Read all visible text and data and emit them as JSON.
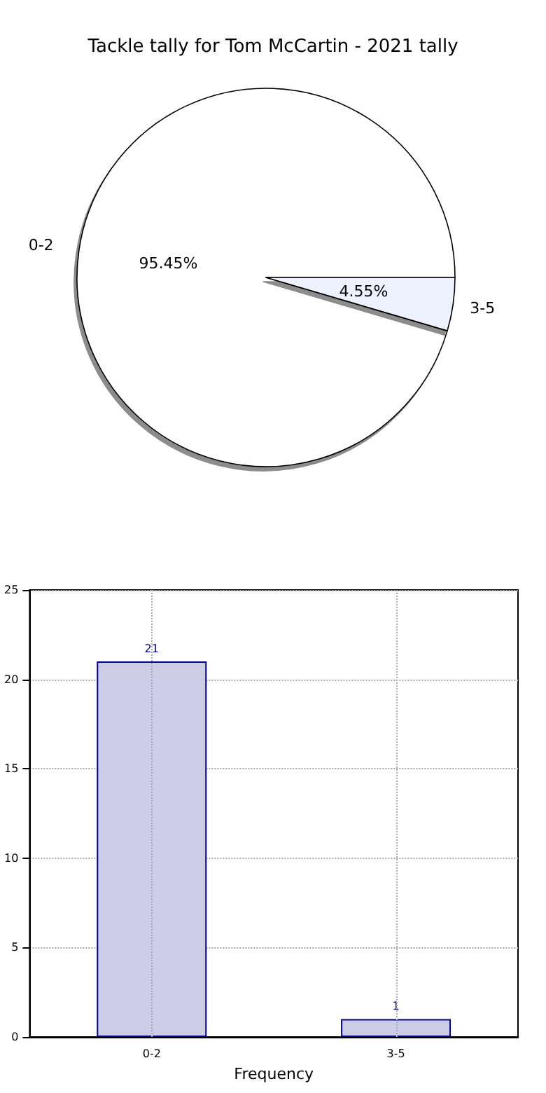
{
  "chart_data": [
    {
      "type": "pie",
      "title": "Tackle tally for Tom McCartin - 2021 tally",
      "categories": [
        "0-2",
        "3-5"
      ],
      "values": [
        95.45,
        4.55
      ],
      "value_labels": [
        "95.45%",
        "4.55%"
      ],
      "colors": [
        "#ffffff",
        "#eef2fe"
      ],
      "legend": false
    },
    {
      "type": "bar",
      "categories": [
        "0-2",
        "3-5"
      ],
      "values": [
        21,
        1
      ],
      "color": "#cccce6",
      "xlabel": "Frequency",
      "ylim": [
        0,
        25
      ],
      "yticks": [
        0,
        5,
        10,
        15,
        20,
        25
      ],
      "grid": true,
      "data_labels": true,
      "legend": false
    }
  ]
}
